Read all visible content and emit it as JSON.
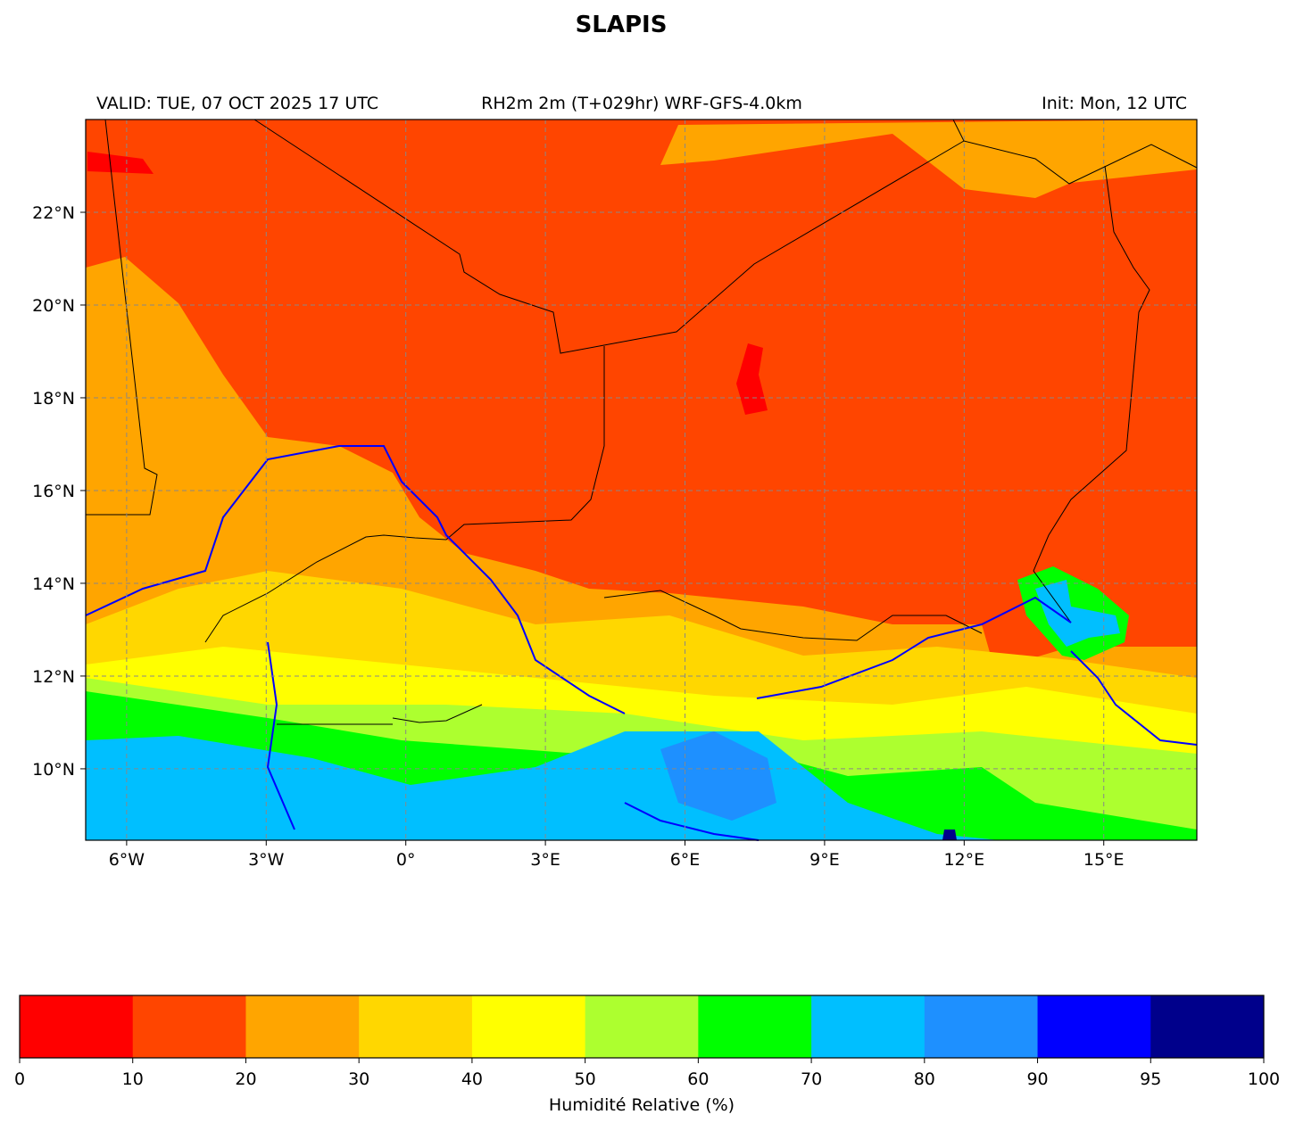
{
  "title": "SLAPIS",
  "header": {
    "left": "VALID: TUE, 07 OCT 2025 17 UTC",
    "center": "RH2m 2m (T+029hr) WRF-GFS-4.0km",
    "right": "Init: Mon, 12 UTC"
  },
  "map": {
    "xlim": [
      -6.88,
      17.0
    ],
    "ylim": [
      8.46,
      24.0
    ],
    "xticks": [
      {
        "value": -6,
        "label": "6°W"
      },
      {
        "value": -3,
        "label": "3°W"
      },
      {
        "value": 0,
        "label": "0°"
      },
      {
        "value": 3,
        "label": "3°E"
      },
      {
        "value": 6,
        "label": "6°E"
      },
      {
        "value": 9,
        "label": "9°E"
      },
      {
        "value": 12,
        "label": "12°E"
      },
      {
        "value": 15,
        "label": "15°E"
      }
    ],
    "yticks": [
      {
        "value": 10,
        "label": "10°N"
      },
      {
        "value": 12,
        "label": "12°N"
      },
      {
        "value": 14,
        "label": "14°N"
      },
      {
        "value": 16,
        "label": "16°N"
      },
      {
        "value": 18,
        "label": "18°N"
      },
      {
        "value": 20,
        "label": "20°N"
      },
      {
        "value": 22,
        "label": "22°N"
      }
    ],
    "grid": true
  },
  "colorbar": {
    "label": "Humidité Relative (%)",
    "bounds": [
      0,
      10,
      20,
      30,
      40,
      50,
      60,
      70,
      80,
      90,
      95,
      100
    ],
    "colors": [
      "#ff0000",
      "#ff4500",
      "#ffa500",
      "#ffd700",
      "#ffff00",
      "#adff2f",
      "#00ff00",
      "#00bfff",
      "#1e90ff",
      "#0000ff",
      "#00008b"
    ]
  }
}
